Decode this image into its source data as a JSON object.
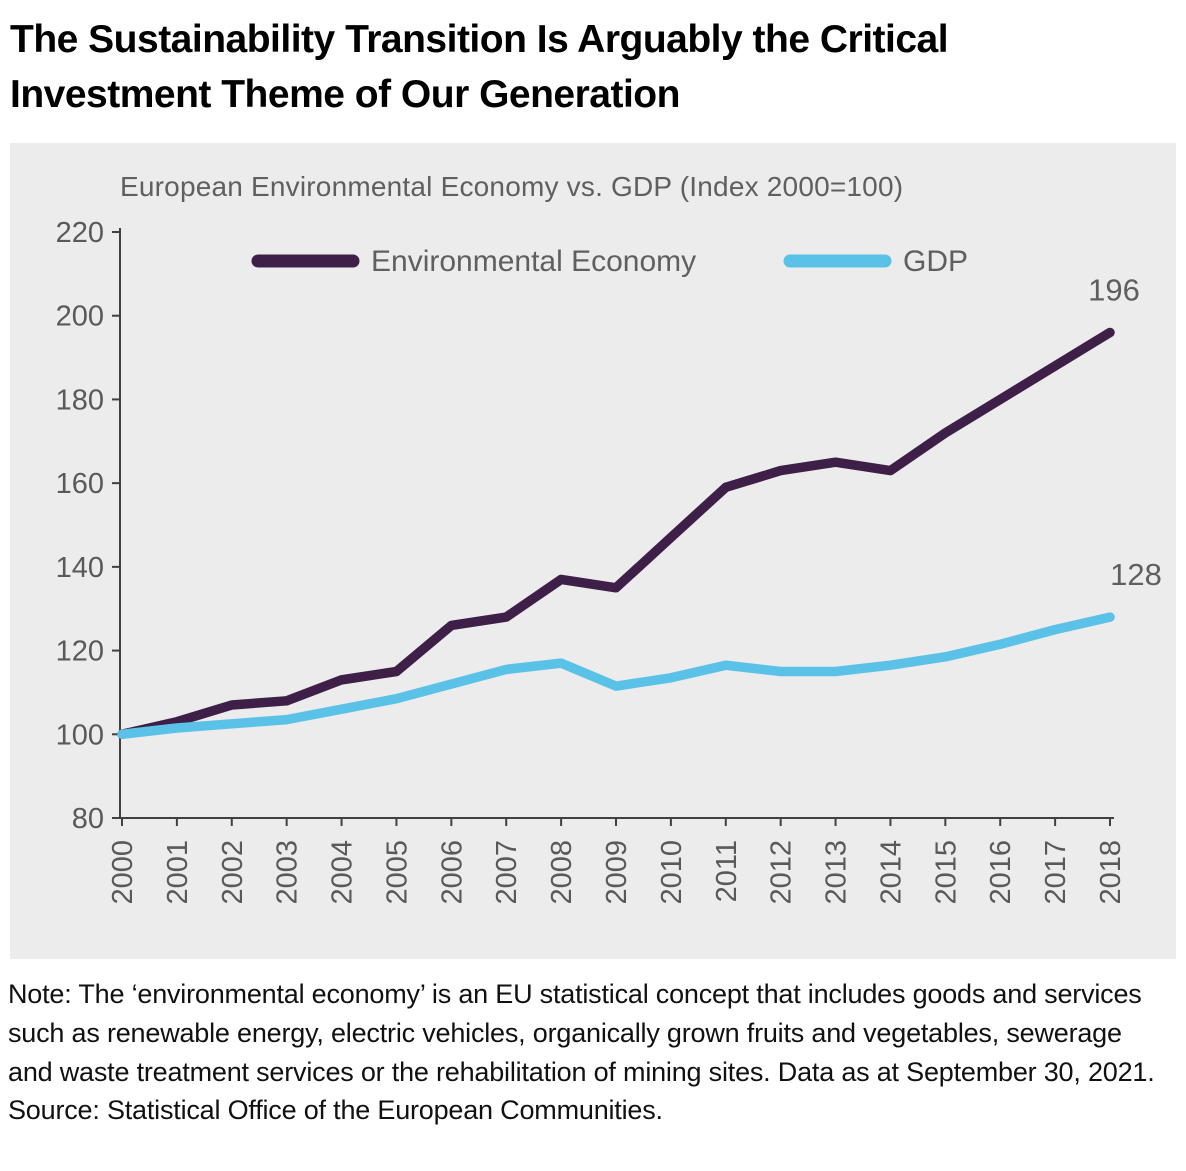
{
  "header": {
    "title_lines": [
      "The Sustainability Transition Is Arguably the Critical",
      "Investment Theme of Our Generation"
    ]
  },
  "chart": {
    "panel_bg": "#ececec"
  },
  "chart_data": {
    "type": "line",
    "title": "European Environmental Economy vs. GDP (Index 2000=100)",
    "x": [
      "2000",
      "2001",
      "2002",
      "2003",
      "2004",
      "2005",
      "2006",
      "2007",
      "2008",
      "2009",
      "2010",
      "2011",
      "2012",
      "2013",
      "2014",
      "2015",
      "2016",
      "2017",
      "2018"
    ],
    "series": [
      {
        "name": "Environmental Economy",
        "color": "#3e1f47",
        "values": [
          100,
          103,
          107,
          108,
          113,
          115,
          126,
          128,
          137,
          135,
          147,
          159,
          163,
          165,
          163,
          172,
          180,
          188,
          196
        ],
        "end_label": "196"
      },
      {
        "name": "GDP",
        "color": "#5bc2e7",
        "values": [
          100,
          101.5,
          102.5,
          103.5,
          106,
          108.5,
          112,
          115.5,
          117,
          111.5,
          113.5,
          116.5,
          115,
          115,
          116.5,
          118.5,
          121.5,
          125,
          128
        ],
        "end_label": "128"
      }
    ],
    "ylim": [
      80,
      220
    ],
    "ytick_step": 20,
    "grid": false,
    "legend_position": "top",
    "axis_color": "#404040",
    "tick_label_color": "#595959"
  },
  "note": {
    "text": "Note: The ‘environmental economy’ is an EU statistical concept that includes goods and services such as renewable energy, electric vehicles, organically grown fruits and vegetables, sewerage and waste treatment services or the rehabilitation of mining sites. Data as at September 30, 2021. Source: Statistical Office of the European Communities."
  }
}
